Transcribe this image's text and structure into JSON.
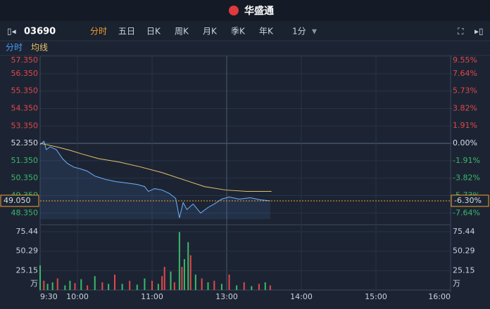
{
  "header": {
    "logo": "华盛通",
    "code": "03690",
    "tabs": [
      "分时",
      "五日",
      "日K",
      "周K",
      "月K",
      "季K",
      "年K"
    ],
    "period": "1分"
  },
  "chart_data": {
    "type": "intraday",
    "xlim": [
      0,
      330
    ],
    "xticks": [
      {
        "value": 0,
        "label": "9:30"
      },
      {
        "value": 30,
        "label": "10:00"
      },
      {
        "value": 90,
        "label": "11:00"
      },
      {
        "value": 150,
        "label": "13:00"
      },
      {
        "value": 210,
        "label": "14:00"
      },
      {
        "value": 270,
        "label": "15:00"
      },
      {
        "value": 330,
        "label": "16:00"
      }
    ],
    "ylim": [
      48.0,
      57.35
    ],
    "yticks": [
      {
        "value": 57.35,
        "label": "57.350"
      },
      {
        "value": 56.35,
        "label": "56.350"
      },
      {
        "value": 55.35,
        "label": "55.350"
      },
      {
        "value": 54.35,
        "label": "54.350"
      },
      {
        "value": 53.35,
        "label": "53.350"
      },
      {
        "value": 52.35,
        "label": "52.350"
      },
      {
        "value": 51.35,
        "label": "51.350"
      },
      {
        "value": 50.35,
        "label": "50.350"
      },
      {
        "value": 49.35,
        "label": "49.350"
      },
      {
        "value": 48.35,
        "label": "48.350"
      }
    ],
    "y2lim": [
      -8.31,
      9.55
    ],
    "y2ticks": [
      {
        "value": 9.55,
        "label": "9.55%"
      },
      {
        "value": 7.64,
        "label": "7.64%"
      },
      {
        "value": 5.73,
        "label": "5.73%"
      },
      {
        "value": 3.82,
        "label": "3.82%"
      },
      {
        "value": 1.91,
        "label": "1.91%"
      },
      {
        "value": 0,
        "label": "0.00%"
      },
      {
        "value": -1.91,
        "label": "-1.91%"
      },
      {
        "value": -3.82,
        "label": "-3.82%"
      },
      {
        "value": -5.73,
        "label": "-5.73%"
      },
      {
        "value": -7.64,
        "label": "-7.64%"
      }
    ],
    "series": [
      {
        "name": "分时",
        "color": "#6fb1ff",
        "x": [
          0,
          3,
          5,
          8,
          13,
          18,
          22,
          27,
          33,
          38,
          44,
          53,
          61,
          70,
          78,
          84,
          87,
          92,
          98,
          104,
          109,
          112,
          115,
          118,
          123,
          129,
          135,
          140,
          146,
          152,
          160,
          169,
          177,
          185
        ],
        "values": [
          52.27,
          52.47,
          51.99,
          52.15,
          51.99,
          51.47,
          51.19,
          50.99,
          50.87,
          50.75,
          50.47,
          50.27,
          50.15,
          50.07,
          49.99,
          49.87,
          49.59,
          49.75,
          49.67,
          49.47,
          49.19,
          48.07,
          48.95,
          48.55,
          48.87,
          48.35,
          48.67,
          48.87,
          49.15,
          49.27,
          49.15,
          49.23,
          49.11,
          49.05
        ]
      },
      {
        "name": "均线",
        "color": "#e8c36a",
        "x": [
          0,
          13,
          24,
          33,
          47,
          64,
          81,
          98,
          115,
          132,
          149,
          166,
          186
        ],
        "values": [
          52.35,
          52.15,
          51.95,
          51.75,
          51.47,
          51.27,
          50.99,
          50.67,
          50.27,
          49.87,
          49.67,
          49.59,
          49.59
        ]
      }
    ],
    "last": {
      "value": 49.05,
      "label": "49.050"
    },
    "last_change": {
      "value": -6.3,
      "label": "-6.30%"
    },
    "volume": {
      "unit": "万",
      "ylim": [
        0,
        75.44
      ],
      "yticks": [
        25.15,
        50.29,
        75.44
      ],
      "x": [
        0,
        3,
        6,
        10,
        14,
        20,
        24,
        28,
        33,
        38,
        44,
        50,
        55,
        60,
        66,
        72,
        78,
        84,
        90,
        95,
        98,
        100,
        105,
        108,
        112,
        114,
        116,
        119,
        121,
        125,
        130,
        135,
        140,
        146,
        152,
        158,
        164,
        170,
        176,
        181,
        185
      ],
      "values": [
        32,
        12,
        8,
        10,
        15,
        6,
        12,
        9,
        14,
        6,
        18,
        10,
        8,
        20,
        8,
        12,
        7,
        15,
        12,
        8,
        18,
        30,
        24,
        10,
        75,
        30,
        40,
        62,
        45,
        20,
        15,
        10,
        12,
        8,
        20,
        6,
        10,
        5,
        8,
        10,
        6
      ],
      "colors": [
        "#3bb86a",
        "#e04848",
        "#3bb86a",
        "#3bb86a",
        "#e04848",
        "#3bb86a",
        "#3bb86a",
        "#e04848",
        "#3bb86a",
        "#e04848",
        "#3bb86a",
        "#e04848",
        "#3bb86a",
        "#e04848",
        "#3bb86a",
        "#e04848",
        "#3bb86a",
        "#3bb86a",
        "#e04848",
        "#3bb86a",
        "#e04848",
        "#e04848",
        "#3bb86a",
        "#e04848",
        "#3bb86a",
        "#e04848",
        "#3bb86a",
        "#3bb86a",
        "#e04848",
        "#3bb86a",
        "#e04848",
        "#3bb86a",
        "#e04848",
        "#3bb86a",
        "#e04848",
        "#3bb86a",
        "#e04848",
        "#3bb86a",
        "#e04848",
        "#3bb86a",
        "#e04848"
      ]
    }
  }
}
